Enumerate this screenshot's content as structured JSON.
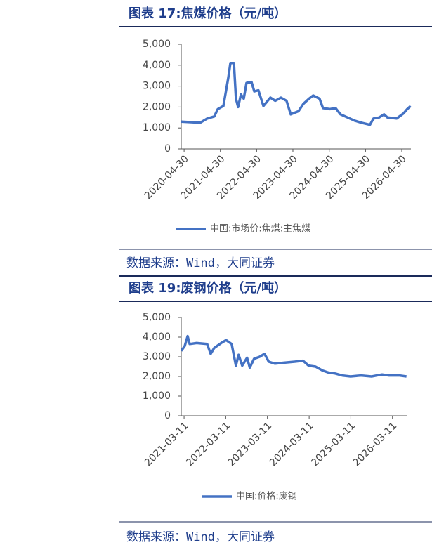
{
  "chart_data": [
    {
      "type": "line",
      "title": "图表 17:焦煤价格（元/吨）",
      "source": "数据来源：Wind，大同证券",
      "x": [
        "2020-04-02",
        "2020-10-09",
        "2020-12-19",
        "2021-02-28",
        "2021-04-04",
        "2021-05-30",
        "2021-07-19",
        "2021-08-09",
        "2021-09-13",
        "2021-10-04",
        "2021-10-26",
        "2021-11-23",
        "2021-12-21",
        "2022-01-18",
        "2022-03-09",
        "2022-04-06",
        "2022-05-18",
        "2022-07-07",
        "2022-09-15",
        "2022-11-04",
        "2022-12-30",
        "2023-02-25",
        "2023-04-08",
        "2023-06-25",
        "2023-08-13",
        "2023-10-09",
        "2023-11-20",
        "2024-01-23",
        "2024-02-27",
        "2024-05-07",
        "2024-07-03",
        "2024-08-21",
        "2024-10-31",
        "2025-01-10",
        "2025-03-21",
        "2025-06-14",
        "2025-07-19",
        "2025-09-14",
        "2025-11-02",
        "2025-12-07",
        "2026-03-09",
        "2026-05-19",
        "2026-06-23",
        "2026-07-28"
      ],
      "series": [
        {
          "name": "中国:市场价:焦煤:主焦煤",
          "color": "#4472c4",
          "values": [
            1300,
            1250,
            1450,
            1550,
            1900,
            2050,
            3400,
            4100,
            4100,
            2400,
            2000,
            2600,
            2400,
            3150,
            3200,
            2750,
            2800,
            2050,
            2450,
            2300,
            2450,
            2300,
            1650,
            1800,
            2150,
            2400,
            2550,
            2400,
            1950,
            1900,
            1950,
            1650,
            1500,
            1350,
            1250,
            1150,
            1450,
            1500,
            1650,
            1500,
            1450,
            1700,
            1900,
            2050
          ]
        }
      ],
      "xlim": [
        "2020-04-01",
        "2026-07-31"
      ],
      "xticks": [
        "2020-04-30",
        "2021-04-30",
        "2022-04-30",
        "2023-04-30",
        "2024-04-30",
        "2025-04-30",
        "2026-04-30"
      ],
      "ylim": [
        0,
        5000
      ],
      "yticks": [
        0,
        {
          "value": 1000,
          "label": "1,000"
        },
        {
          "value": 2000,
          "label": "2,000"
        },
        {
          "value": 3000,
          "label": "3,000"
        },
        {
          "value": 4000,
          "label": "4,000"
        },
        {
          "value": 5000,
          "label": "5,000"
        }
      ]
    },
    {
      "type": "line",
      "title": "图表 19:废钢价格（元/吨）",
      "source": "数据来源：Wind，大同证券",
      "x": [
        "2021-02-14",
        "2021-03-17",
        "2021-04-11",
        "2021-04-29",
        "2021-06-29",
        "2021-09-29",
        "2021-10-30",
        "2021-11-30",
        "2022-01-30",
        "2022-03-14",
        "2022-05-02",
        "2022-06-08",
        "2022-07-02",
        "2022-08-02",
        "2022-09-14",
        "2022-10-08",
        "2022-11-14",
        "2023-01-02",
        "2023-02-14",
        "2023-03-23",
        "2023-05-17",
        "2023-08-05",
        "2023-11-05",
        "2024-01-17",
        "2024-03-06",
        "2024-05-06",
        "2024-07-07",
        "2024-08-25",
        "2024-10-25",
        "2024-12-25",
        "2025-03-09",
        "2025-06-09",
        "2025-09-09",
        "2025-12-10",
        "2026-02-09",
        "2026-05-12",
        "2026-07-12"
      ],
      "series": [
        {
          "name": "中国:价格:废钢",
          "color": "#4472c4",
          "values": [
            3300,
            3550,
            4050,
            3650,
            3700,
            3650,
            3150,
            3450,
            3700,
            3850,
            3650,
            2550,
            3100,
            2550,
            2950,
            2450,
            2900,
            3000,
            3150,
            2750,
            2650,
            2700,
            2750,
            2800,
            2550,
            2500,
            2300,
            2200,
            2150,
            2050,
            2000,
            2050,
            2000,
            2100,
            2050,
            2050,
            2000
          ]
        }
      ],
      "xlim": [
        "2021-02-14",
        "2026-07-20"
      ],
      "xticks": [
        "2021-03-11",
        "2022-03-11",
        "2023-03-11",
        "2024-03-11",
        "2025-03-11",
        "2026-03-11"
      ],
      "ylim": [
        0,
        5000
      ],
      "yticks": [
        0,
        {
          "value": 1000,
          "label": "1,000"
        },
        {
          "value": 2000,
          "label": "2,000"
        },
        {
          "value": 3000,
          "label": "3,000"
        },
        {
          "value": 4000,
          "label": "4,000"
        },
        {
          "value": 5000,
          "label": "5,000"
        }
      ]
    }
  ]
}
